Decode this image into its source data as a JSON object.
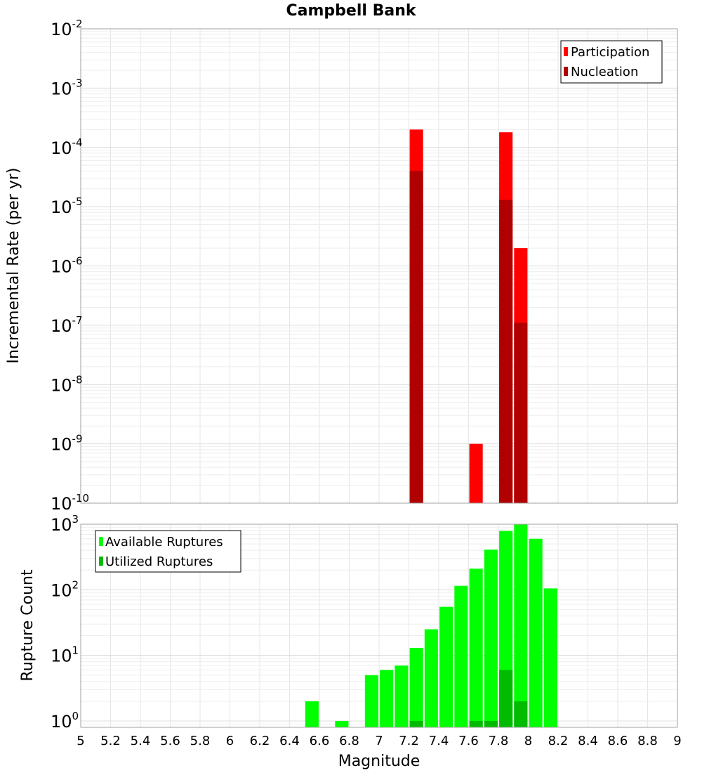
{
  "chart_data": [
    {
      "type": "bar",
      "title": "Campbell Bank",
      "ylabel": "Incremental Rate (per yr)",
      "xlabel": "",
      "x_range": [
        5,
        9
      ],
      "ylim": [
        1e-10,
        0.01
      ],
      "y_scale": "log",
      "y_ticks": [
        {
          "base": "10",
          "exp": "-2"
        },
        {
          "base": "10",
          "exp": "-3"
        },
        {
          "base": "10",
          "exp": "-4"
        },
        {
          "base": "10",
          "exp": "-5"
        },
        {
          "base": "10",
          "exp": "-6"
        },
        {
          "base": "10",
          "exp": "-7"
        },
        {
          "base": "10",
          "exp": "-8"
        },
        {
          "base": "10",
          "exp": "-9"
        },
        {
          "base": "10",
          "exp": "-10"
        }
      ],
      "legend_position": "top-right",
      "grid": true,
      "series": [
        {
          "name": "Participation",
          "color": "#ff0000",
          "points": [
            {
              "x": 7.25,
              "y": 0.0002
            },
            {
              "x": 7.65,
              "y": 1e-09
            },
            {
              "x": 7.85,
              "y": 0.00018
            },
            {
              "x": 7.95,
              "y": 2e-06
            }
          ]
        },
        {
          "name": "Nucleation",
          "color": "#b00000",
          "points": [
            {
              "x": 7.25,
              "y": 4e-05
            },
            {
              "x": 7.85,
              "y": 1.3e-05
            },
            {
              "x": 7.95,
              "y": 1.1e-07
            }
          ]
        }
      ]
    },
    {
      "type": "bar",
      "title": "",
      "ylabel": "Rupture Count",
      "xlabel": "Magnitude",
      "x_range": [
        5,
        9
      ],
      "x_ticks": [
        "5",
        "5.2",
        "5.4",
        "5.6",
        "5.8",
        "6",
        "6.2",
        "6.4",
        "6.6",
        "6.8",
        "7",
        "7.2",
        "7.4",
        "7.6",
        "7.8",
        "8",
        "8.2",
        "8.4",
        "8.6",
        "8.8",
        "9"
      ],
      "ylim": [
        0.8,
        1000
      ],
      "y_scale": "log",
      "y_ticks": [
        {
          "base": "10",
          "exp": "3"
        },
        {
          "base": "10",
          "exp": "2"
        },
        {
          "base": "10",
          "exp": "1"
        },
        {
          "base": "10",
          "exp": "0"
        }
      ],
      "legend_position": "top-left",
      "grid": true,
      "series": [
        {
          "name": "Available Ruptures",
          "color": "#00ff00",
          "points": [
            {
              "x": 6.55,
              "y": 2
            },
            {
              "x": 6.75,
              "y": 1
            },
            {
              "x": 6.95,
              "y": 5
            },
            {
              "x": 7.05,
              "y": 6
            },
            {
              "x": 7.15,
              "y": 7
            },
            {
              "x": 7.25,
              "y": 13
            },
            {
              "x": 7.35,
              "y": 25
            },
            {
              "x": 7.45,
              "y": 55
            },
            {
              "x": 7.55,
              "y": 115
            },
            {
              "x": 7.65,
              "y": 210
            },
            {
              "x": 7.75,
              "y": 410
            },
            {
              "x": 7.85,
              "y": 790
            },
            {
              "x": 7.95,
              "y": 1000
            },
            {
              "x": 8.05,
              "y": 600
            },
            {
              "x": 8.15,
              "y": 105
            }
          ]
        },
        {
          "name": "Utilized Ruptures",
          "color": "#00bb00",
          "points": [
            {
              "x": 7.25,
              "y": 1
            },
            {
              "x": 7.65,
              "y": 1
            },
            {
              "x": 7.75,
              "y": 1
            },
            {
              "x": 7.85,
              "y": 6
            },
            {
              "x": 7.95,
              "y": 2
            }
          ]
        }
      ]
    }
  ]
}
